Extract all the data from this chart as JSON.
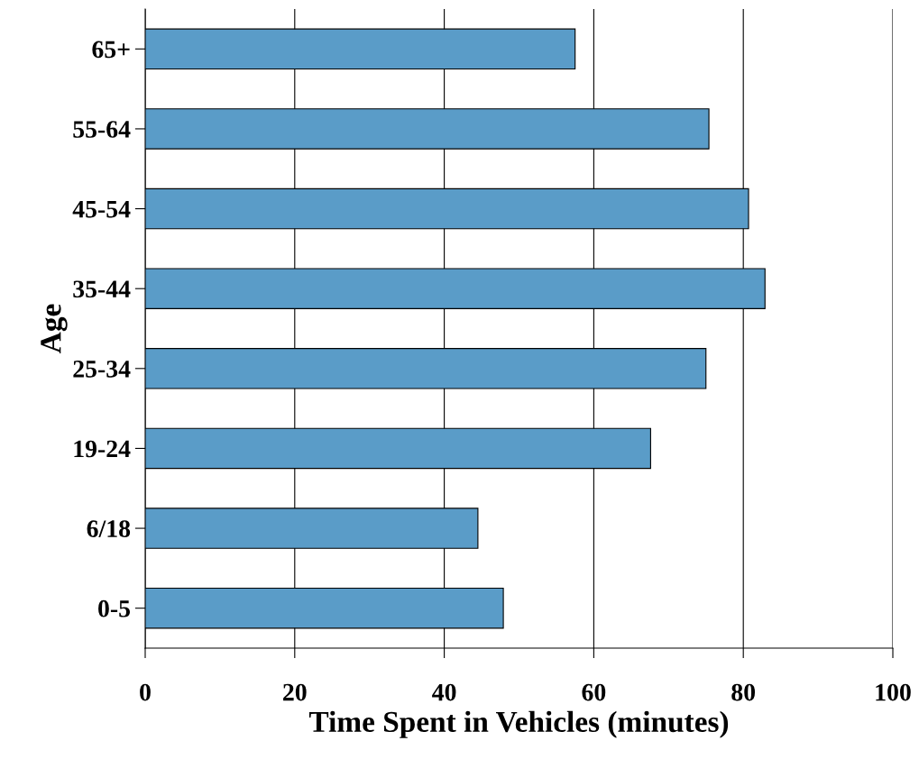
{
  "chart_data": {
    "type": "bar",
    "orientation": "horizontal",
    "xlabel": "Time Spent in Vehicles (minutes)",
    "ylabel": "Age",
    "categories": [
      "65+",
      "55-64",
      "45-54",
      "35-44",
      "25-34",
      "19-24",
      "6/18",
      "0-5"
    ],
    "values": [
      57.5,
      75.4,
      80.7,
      82.9,
      75.0,
      67.6,
      44.5,
      47.9
    ],
    "color": "#5a9cc8",
    "xlim": [
      0,
      100
    ],
    "xticks": [
      0,
      20,
      40,
      60,
      80,
      100
    ],
    "grid": "x"
  }
}
